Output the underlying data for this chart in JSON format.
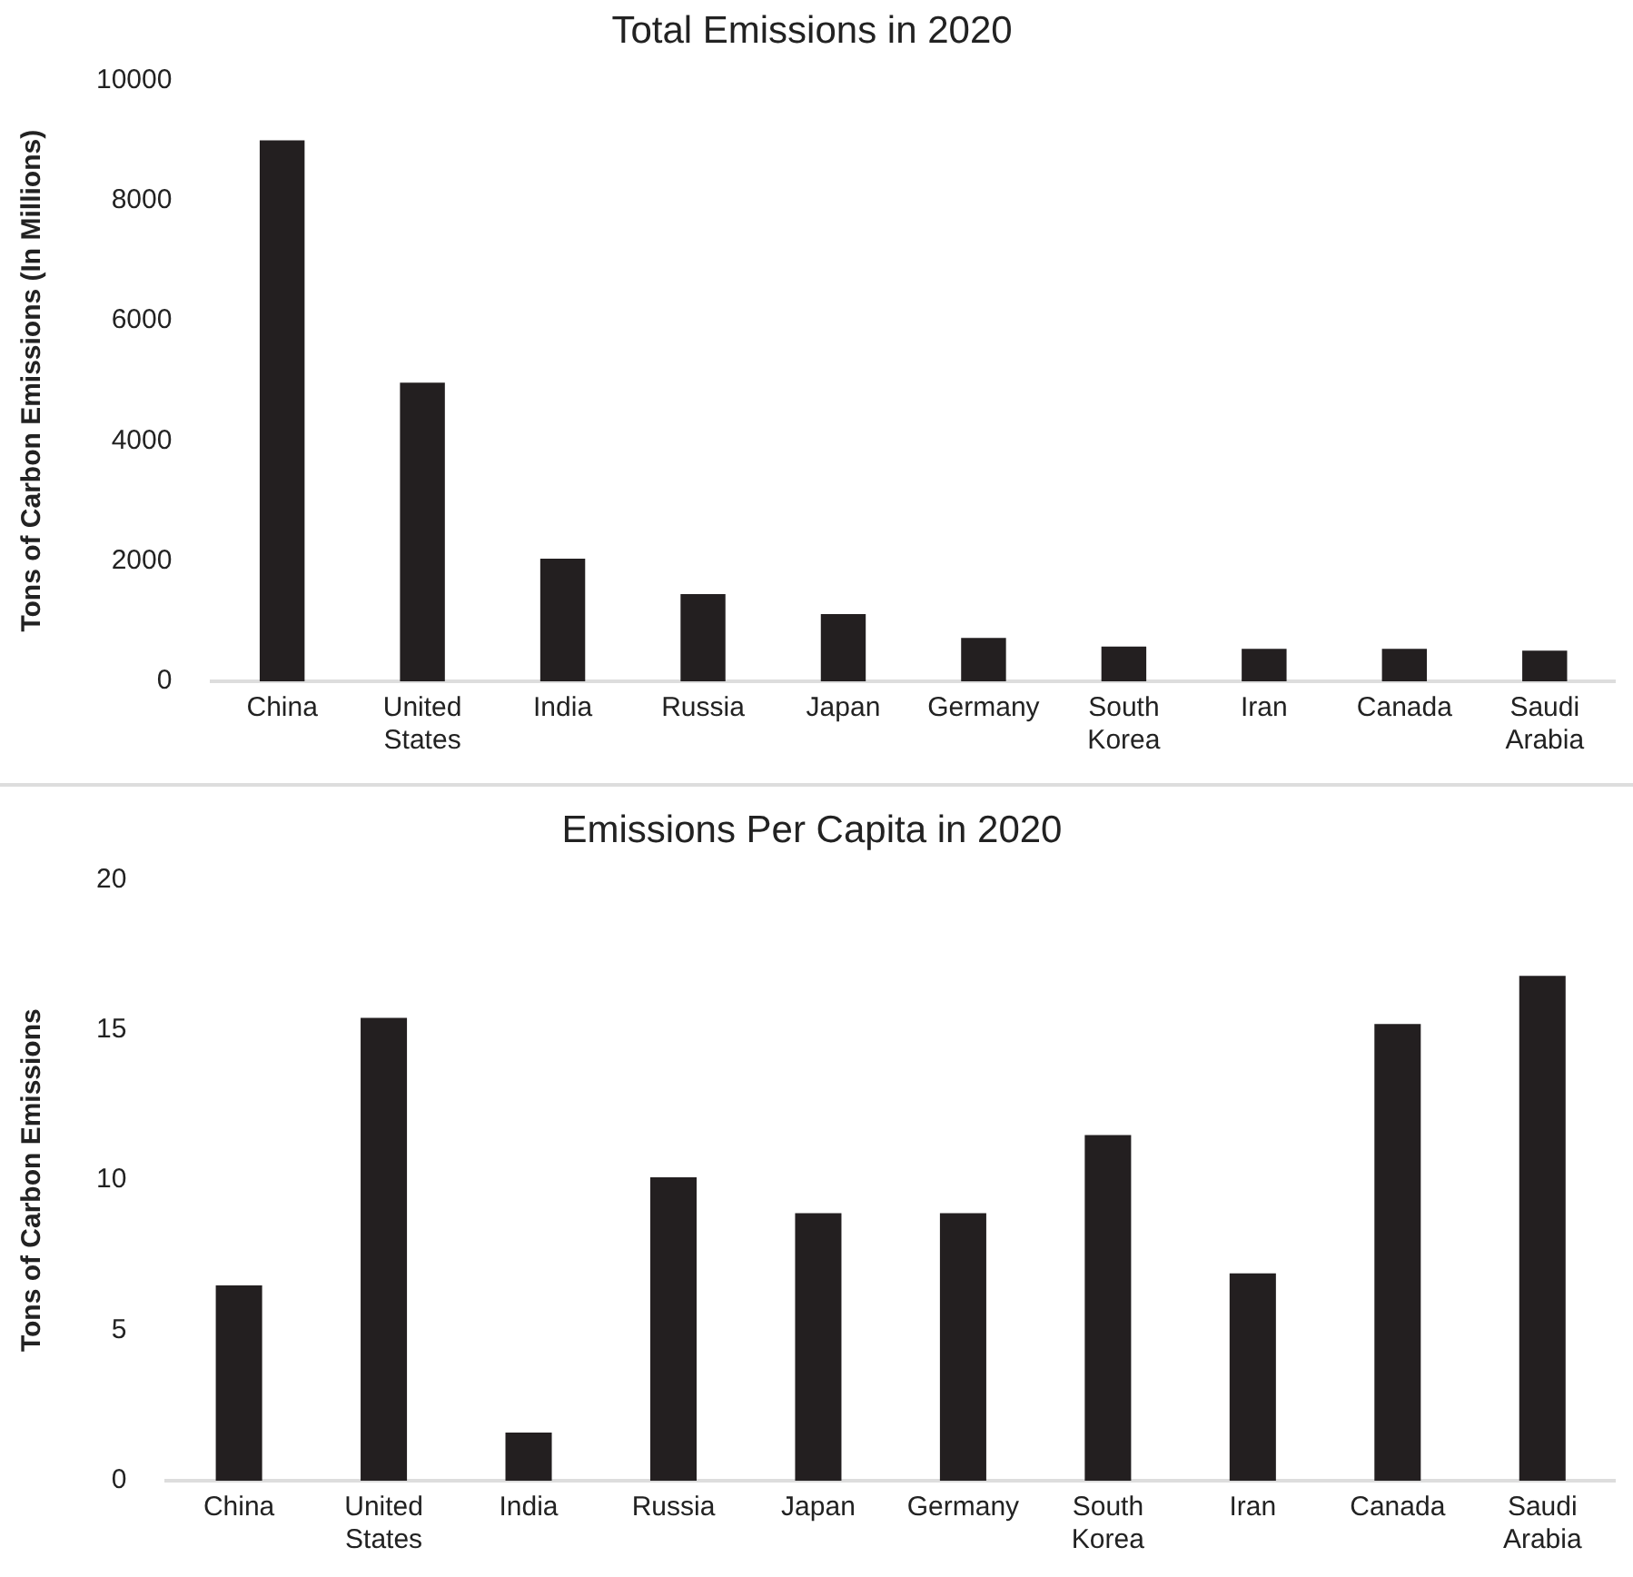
{
  "chart_data": [
    {
      "type": "bar",
      "title": "Total Emissions in 2020",
      "ylabel": "Tons of Carbon Emissions (In Millions)",
      "categories": [
        "China",
        "United States",
        "India",
        "Russia",
        "Japan",
        "Germany",
        "South Korea",
        "Iran",
        "Canada",
        "Saudi Arabia"
      ],
      "values": [
        9000,
        4970,
        2040,
        1450,
        1120,
        720,
        580,
        540,
        540,
        510
      ],
      "color": "#231f20",
      "ylim": [
        0,
        10000
      ],
      "yticks": [
        0,
        2000,
        4000,
        6000,
        8000,
        10000
      ],
      "grid": false
    },
    {
      "type": "bar",
      "title": "Emissions Per Capita in 2020",
      "ylabel": "Tons of Carbon Emissions",
      "categories": [
        "China",
        "United States",
        "India",
        "Russia",
        "Japan",
        "Germany",
        "South Korea",
        "Iran",
        "Canada",
        "Saudi Arabia"
      ],
      "values": [
        6.5,
        15.4,
        1.6,
        10.1,
        8.9,
        8.9,
        11.5,
        6.9,
        15.2,
        16.8
      ],
      "color": "#231f20",
      "ylim": [
        0,
        20
      ],
      "yticks": [
        0,
        5,
        10,
        15,
        20
      ],
      "grid": false
    }
  ]
}
